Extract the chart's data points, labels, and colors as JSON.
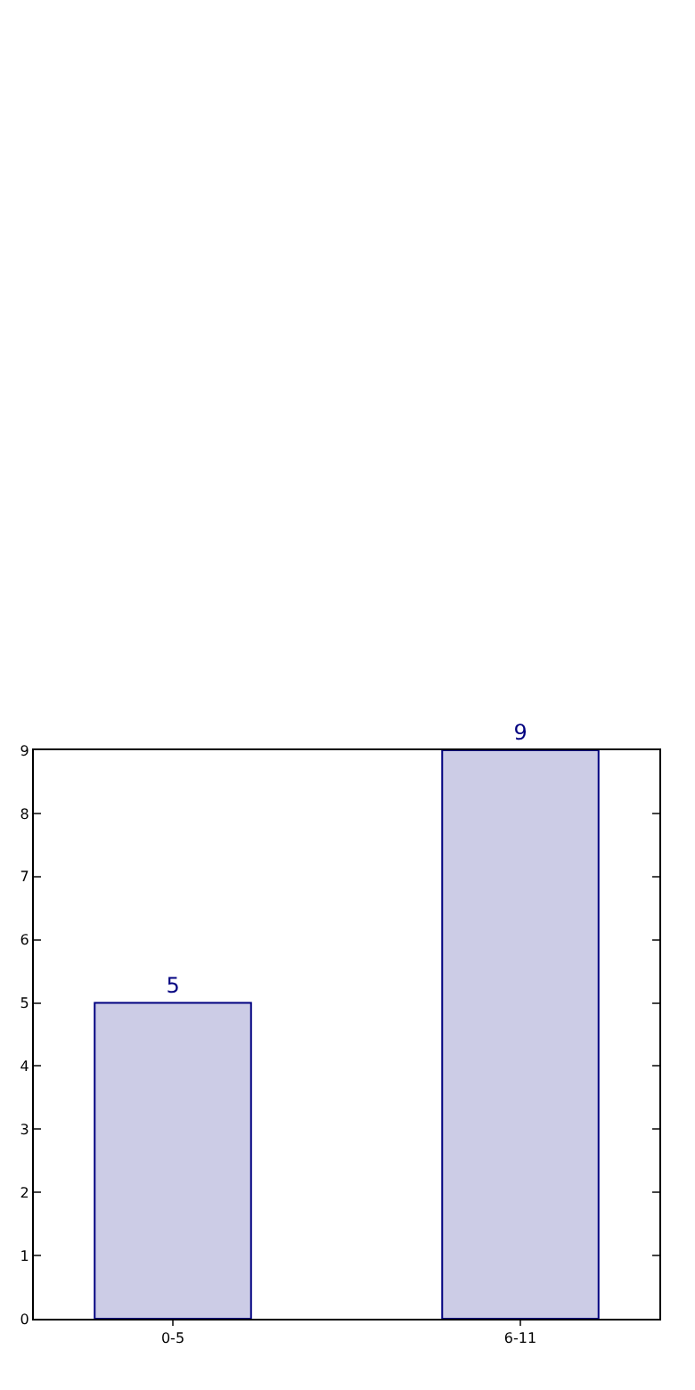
{
  "chart_data": {
    "type": "bar",
    "categories": [
      "0-5",
      "6-11"
    ],
    "values": [
      5,
      9
    ],
    "color": "#ccccE6",
    "data_labels": true,
    "ylim": [
      0,
      9
    ],
    "yticks": [
      0,
      1,
      2,
      3,
      4,
      5,
      6,
      7,
      8,
      9
    ]
  }
}
